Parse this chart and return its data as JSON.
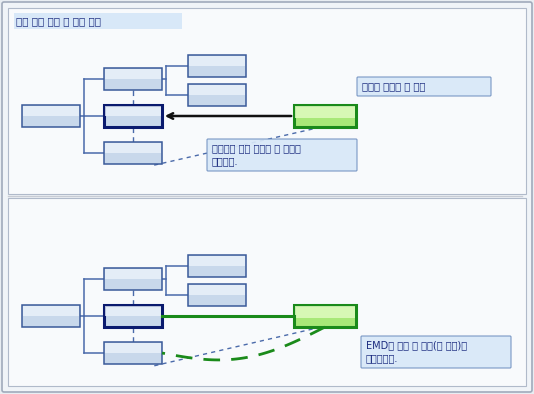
{
  "title": "기존 포함 트리 및 참조 관계",
  "bg_outer": "#e8edf2",
  "bg_panel": "#f8fafc",
  "box_fill_light": "#c8d8eb",
  "box_fill_lighter": "#ddeaf8",
  "box_top_highlight": "#eef5fc",
  "box_border_blue": "#3a5a9a",
  "box_border_dark": "#0a1a6e",
  "box_fill_green": "#a8e878",
  "box_fill_green_top": "#e0fcc0",
  "box_border_green": "#1a8a1a",
  "label_bg": "#d8e8f8",
  "label_border": "#7090c0",
  "label_text": "#1a2a7e",
  "divider_color": "#c8ccd4",
  "conn_color": "#4a6aaa",
  "arrow_color": "#111111",
  "top_label1": "트리에 연결될 새 요소",
  "top_label2": "사용자가 기존 대상에 새 요소를\n놓습니다.",
  "bot_label": "EMD는 만들 새 링크(및 개체)를\n결정합니다."
}
